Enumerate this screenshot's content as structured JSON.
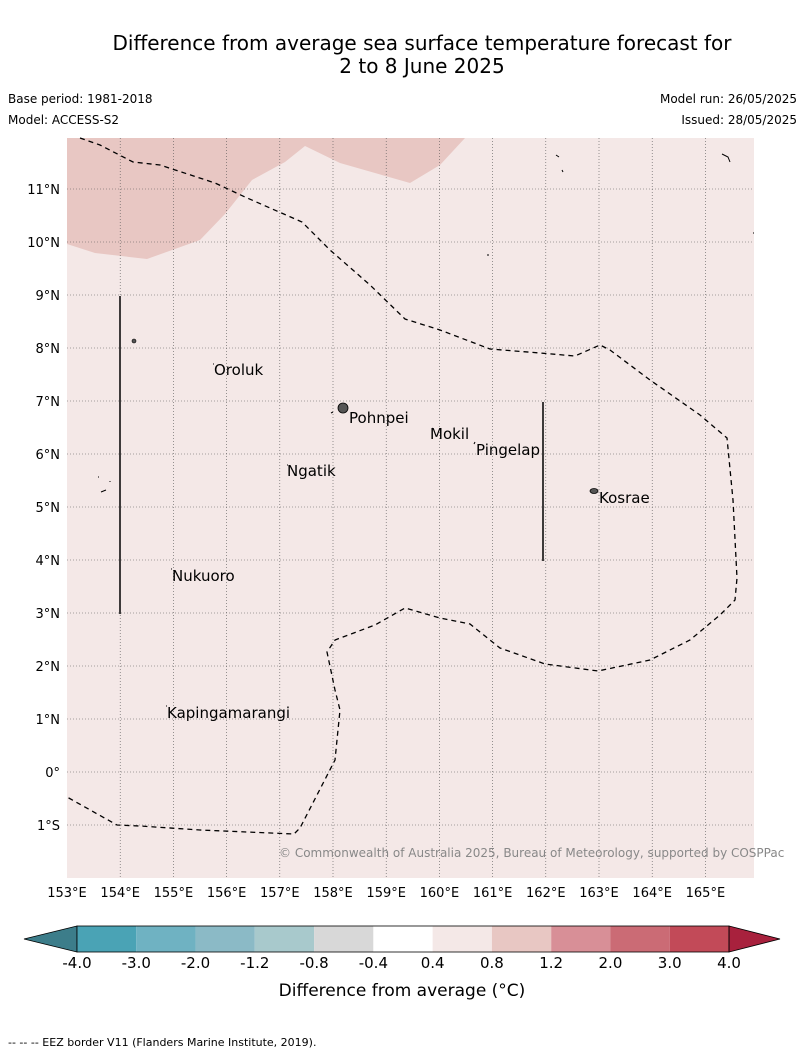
{
  "title_line1": "Difference from average sea surface temperature forecast for",
  "title_line2": "2 to 8 June 2025",
  "base_period": "Base period: 1981-2018",
  "model": "Model: ACCESS-S2",
  "model_run": "Model run: 26/05/2025",
  "issued": "Issued: 28/05/2025",
  "copyright": "© Commonwealth of Australia 2025, Bureau of Meteorology, supported by COSPPac",
  "footer_note": "-- --  -- EEZ border V11 (Flanders Marine Institute, 2019).",
  "colorbar": {
    "label": "Difference from average (°C)",
    "ticks": [
      "-4.0",
      "-3.0",
      "-2.0",
      "-1.2",
      "-0.8",
      "-0.4",
      "0.4",
      "0.8",
      "1.2",
      "2.0",
      "3.0",
      "4.0"
    ],
    "colors": [
      "#4aa3b5",
      "#6fb2c2",
      "#8bbac6",
      "#a8c9cc",
      "#d8d8d8",
      "#ffffff",
      "#f4e8e7",
      "#e8c7c3",
      "#d88f97",
      "#cb6b75",
      "#c24a58"
    ],
    "low_color": "#3c7d8a",
    "high_color": "#a8213d"
  },
  "lon_ticks": [
    "153°E",
    "154°E",
    "155°E",
    "156°E",
    "157°E",
    "158°E",
    "159°E",
    "160°E",
    "161°E",
    "162°E",
    "163°E",
    "164°E",
    "165°E"
  ],
  "lat_ticks": [
    "11°N",
    "10°N",
    "9°N",
    "8°N",
    "7°N",
    "6°N",
    "5°N",
    "4°N",
    "3°N",
    "2°N",
    "1°N",
    "0°",
    "1°S"
  ],
  "places": [
    {
      "name": "Oroluk"
    },
    {
      "name": "Pohnpei"
    },
    {
      "name": "Mokil"
    },
    {
      "name": "Pingelap"
    },
    {
      "name": "Ngatik"
    },
    {
      "name": "Kosrae"
    },
    {
      "name": "Nukuoro"
    },
    {
      "name": "Kapingamarangi"
    }
  ],
  "map_colors": {
    "background_anomaly": "#f4e8e7",
    "warm_anomaly": "#e8c7c3"
  }
}
